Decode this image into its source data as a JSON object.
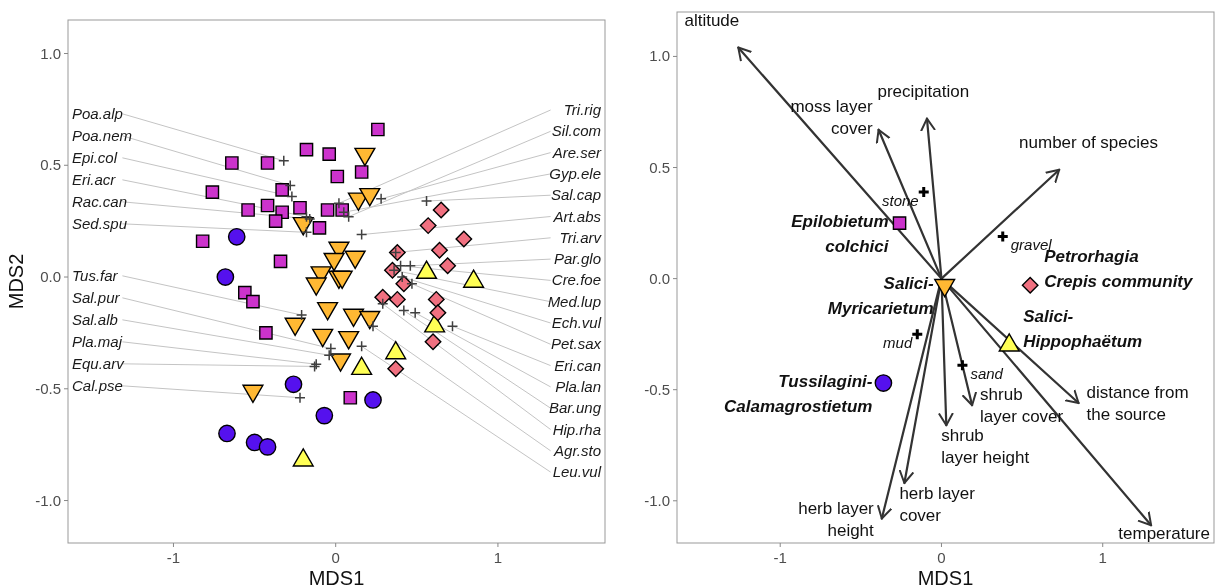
{
  "chart_data": [
    {
      "type": "scatter",
      "xlabel": "MDS1",
      "ylabel": "MDS2",
      "xlim": [
        -1.65,
        1.66
      ],
      "ylim": [
        -1.19,
        1.15
      ],
      "xticks": [
        -1,
        0,
        1
      ],
      "yticks": [
        {
          "value": -1,
          "label": "-1.0"
        },
        {
          "value": -0.5,
          "label": "-0.5"
        },
        {
          "value": 0,
          "label": "0.0"
        },
        {
          "value": 0.5,
          "label": "0.5"
        },
        {
          "value": 1,
          "label": "1.0"
        }
      ],
      "series": [
        {
          "marker": "square",
          "color": "#cc33cc",
          "x": [
            -0.64,
            -0.42,
            -0.18,
            -0.04,
            0.01,
            -0.33,
            -0.76,
            -0.54,
            -0.42,
            -0.33,
            -0.22,
            -0.37,
            -0.05,
            0.04,
            -0.1,
            -0.82,
            -0.34,
            -0.56,
            -0.51,
            0.26,
            0.16,
            -0.43,
            0.09
          ],
          "values": [
            0.51,
            0.51,
            0.57,
            0.55,
            0.45,
            0.39,
            0.38,
            0.3,
            0.32,
            0.29,
            0.31,
            0.25,
            0.3,
            0.3,
            0.22,
            0.16,
            0.07,
            -0.07,
            -0.11,
            0.66,
            0.47,
            -0.25,
            -0.54
          ]
        },
        {
          "marker": "circle",
          "color": "#5511ee",
          "x": [
            -0.61,
            -0.68,
            -0.26,
            -0.07,
            -0.67,
            -0.5,
            -0.42,
            0.23
          ],
          "values": [
            0.18,
            0,
            -0.48,
            -0.62,
            -0.7,
            -0.74,
            -0.76,
            -0.55
          ]
        },
        {
          "marker": "triangle-down",
          "color": "#ffb833",
          "x": [
            -0.2,
            0.02,
            -0.01,
            0.12,
            -0.09,
            -0.12,
            0.02,
            0.04,
            -0.05,
            0.11,
            0.21,
            -0.25,
            -0.08,
            0.08,
            0.03,
            -0.51,
            0.18,
            0.14,
            0.21
          ],
          "values": [
            0.24,
            0.13,
            0.08,
            0.09,
            0.02,
            -0.03,
            0,
            0,
            -0.14,
            -0.17,
            -0.18,
            -0.21,
            -0.26,
            -0.27,
            -0.37,
            -0.51,
            0.55,
            0.35,
            0.37
          ]
        },
        {
          "marker": "triangle",
          "color": "#ffff55",
          "x": [
            0.56,
            0.85,
            0.61,
            0.37,
            0.16,
            -0.2
          ],
          "values": [
            0.02,
            -0.02,
            -0.22,
            -0.34,
            -0.41,
            -0.82
          ]
        },
        {
          "marker": "diamond",
          "color": "#f07080",
          "x": [
            0.65,
            0.57,
            0.79,
            0.38,
            0.64,
            0.69,
            0.35,
            0.42,
            0.29,
            0.38,
            0.62,
            0.63,
            0.6,
            0.37
          ],
          "values": [
            0.3,
            0.23,
            0.17,
            0.11,
            0.12,
            0.05,
            0.03,
            -0.03,
            -0.09,
            -0.1,
            -0.1,
            -0.16,
            -0.29,
            -0.41
          ]
        },
        {
          "marker": "cross",
          "color": "#404040",
          "x": [
            -0.32,
            -0.28,
            -0.27,
            -0.18,
            -0.16,
            -0.18,
            -0.21,
            -0.03,
            -0.04,
            -0.12,
            -0.13,
            -0.22,
            0.02,
            0.08,
            0.28,
            0.05,
            0.56,
            0.16,
            0.37,
            0.46,
            0.4,
            0.36,
            0.41,
            0.47,
            0.72,
            0.49,
            0.42,
            0.29,
            0.23,
            0.16
          ],
          "values": [
            0.52,
            0.41,
            0.36,
            0.27,
            0.26,
            0.2,
            -0.17,
            -0.32,
            -0.35,
            -0.39,
            -0.4,
            -0.54,
            0.33,
            0.27,
            0.35,
            0.29,
            0.34,
            0.19,
            0.11,
            0.05,
            0.05,
            0.03,
            0,
            -0.03,
            -0.22,
            -0.16,
            -0.15,
            -0.12,
            -0.22,
            -0.31
          ]
        }
      ],
      "annotations": [
        {
          "text": "Poa.alp",
          "x": -0.32,
          "y": 0.52
        },
        {
          "text": "Poa.nem",
          "x": -0.28,
          "y": 0.41
        },
        {
          "text": "Epi.col",
          "x": -0.27,
          "y": 0.36
        },
        {
          "text": "Eri.acr",
          "x": -0.18,
          "y": 0.27
        },
        {
          "text": "Rac.can",
          "x": -0.16,
          "y": 0.26
        },
        {
          "text": "Sed.spu",
          "x": -0.18,
          "y": 0.2
        },
        {
          "text": "Tus.far",
          "x": -0.21,
          "y": -0.17
        },
        {
          "text": "Sal.pur",
          "x": -0.03,
          "y": -0.32
        },
        {
          "text": "Sal.alb",
          "x": -0.04,
          "y": -0.35
        },
        {
          "text": "Pla.maj",
          "x": -0.12,
          "y": -0.39
        },
        {
          "text": "Equ.arv",
          "x": -0.13,
          "y": -0.4
        },
        {
          "text": "Cal.pse",
          "x": -0.22,
          "y": -0.54
        },
        {
          "text": "Tri.rig",
          "x": 0.02,
          "y": 0.33
        },
        {
          "text": "Sil.com",
          "x": 0.08,
          "y": 0.27
        },
        {
          "text": "Are.ser",
          "x": 0.28,
          "y": 0.35
        },
        {
          "text": "Gyp.ele",
          "x": 0.05,
          "y": 0.29
        },
        {
          "text": "Sal.cap",
          "x": 0.56,
          "y": 0.34
        },
        {
          "text": "Art.abs",
          "x": 0.16,
          "y": 0.19
        },
        {
          "text": "Tri.arv",
          "x": 0.37,
          "y": 0.11
        },
        {
          "text": "Par.glo",
          "x": 0.46,
          "y": 0.05
        },
        {
          "text": "Cre.foe",
          "x": 0.4,
          "y": 0.05
        },
        {
          "text": "Med.lup",
          "x": 0.36,
          "y": 0.03
        },
        {
          "text": "Ech.vul",
          "x": 0.41,
          "y": 0
        },
        {
          "text": "Pet.sax",
          "x": 0.47,
          "y": -0.03
        },
        {
          "text": "Eri.can",
          "x": 0.72,
          "y": -0.22
        },
        {
          "text": "Pla.lan",
          "x": 0.49,
          "y": -0.16
        },
        {
          "text": "Bar.ung",
          "x": 0.42,
          "y": -0.15
        },
        {
          "text": "Hip.rha",
          "x": 0.29,
          "y": -0.12
        },
        {
          "text": "Agr.sto",
          "x": 0.23,
          "y": -0.22
        },
        {
          "text": "Leu.vul",
          "x": 0.16,
          "y": -0.31
        }
      ]
    },
    {
      "type": "scatter",
      "xlabel": "MDS1",
      "xlim": [
        -1.64,
        1.69
      ],
      "ylim": [
        -1.19,
        1.2
      ],
      "xticks": [
        -1,
        0,
        1
      ],
      "yticks": [
        {
          "value": -1,
          "label": "-1.0"
        },
        {
          "value": -0.5,
          "label": "-0.5"
        },
        {
          "value": 0,
          "label": "0.0"
        },
        {
          "value": 0.5,
          "label": "0.5"
        },
        {
          "value": 1,
          "label": "1.0"
        }
      ],
      "series": [
        {
          "type": "line",
          "name": "altitude",
          "color": "#333333",
          "x": [
            0,
            -1.26
          ],
          "values": [
            0,
            1.04
          ]
        },
        {
          "type": "line",
          "name": "precipitation",
          "color": "#333333",
          "x": [
            0,
            -0.09
          ],
          "values": [
            0,
            0.72
          ]
        },
        {
          "type": "line",
          "name": "moss layer\ncover",
          "color": "#333333",
          "x": [
            0,
            -0.39
          ],
          "values": [
            0,
            0.67
          ]
        },
        {
          "type": "line",
          "name": "number of species",
          "color": "#333333",
          "x": [
            0,
            0.73
          ],
          "values": [
            0,
            0.49
          ]
        },
        {
          "type": "line",
          "name": "distance from\nthe source",
          "color": "#333333",
          "x": [
            0,
            0.85
          ],
          "values": [
            0,
            -0.56
          ]
        },
        {
          "type": "line",
          "name": "temperature",
          "color": "#333333",
          "x": [
            0,
            1.3
          ],
          "values": [
            0,
            -1.11
          ]
        },
        {
          "type": "line",
          "name": "shrub\nlayer cover",
          "color": "#333333",
          "x": [
            0,
            0.19
          ],
          "values": [
            0,
            -0.57
          ]
        },
        {
          "type": "line",
          "name": "shrub\nlayer height",
          "color": "#333333",
          "x": [
            0,
            0.03
          ],
          "values": [
            0,
            -0.66
          ]
        },
        {
          "type": "line",
          "name": "herb layer\ncover",
          "color": "#333333",
          "x": [
            0,
            -0.23
          ],
          "values": [
            0,
            -0.92
          ]
        },
        {
          "type": "line",
          "name": "herb layer\nheight",
          "color": "#333333",
          "x": [
            0,
            -0.37
          ],
          "values": [
            0,
            -1.08
          ]
        },
        {
          "marker": "square",
          "name": "Epilobietum\ncolchici",
          "color": "#cc33cc",
          "x": [
            -0.26
          ],
          "values": [
            0.25
          ]
        },
        {
          "marker": "triangle-down",
          "name": "Salici-\nMyricarietum",
          "color": "#ffb833",
          "x": [
            0.02
          ],
          "values": [
            -0.03
          ]
        },
        {
          "marker": "diamond",
          "name": "Petrorhagia\nCrepis community",
          "color": "#f07080",
          "x": [
            0.55
          ],
          "values": [
            -0.03
          ]
        },
        {
          "marker": "triangle",
          "name": "Salici-\nHippophaëtum",
          "color": "#ffff55",
          "x": [
            0.42
          ],
          "values": [
            -0.3
          ]
        },
        {
          "marker": "circle",
          "name": "Tussilagini-\nCalamagrostietum",
          "color": "#5511ee",
          "x": [
            -0.36
          ],
          "values": [
            -0.47
          ]
        },
        {
          "marker": "cross",
          "name": "stone",
          "color": "#000000",
          "x": [
            -0.11
          ],
          "values": [
            0.39
          ]
        },
        {
          "marker": "cross",
          "name": "gravel",
          "color": "#000000",
          "x": [
            0.38
          ],
          "values": [
            0.19
          ]
        },
        {
          "marker": "cross",
          "name": "mud",
          "color": "#000000",
          "x": [
            -0.15
          ],
          "values": [
            -0.25
          ]
        },
        {
          "marker": "cross",
          "name": "sand",
          "color": "#000000",
          "x": [
            0.13
          ],
          "values": [
            -0.39
          ]
        }
      ]
    }
  ]
}
